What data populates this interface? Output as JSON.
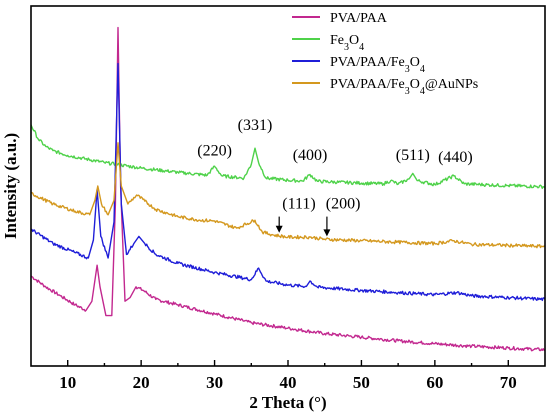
{
  "chart_data": {
    "type": "line",
    "title": "",
    "xlabel": "2 Theta (°)",
    "ylabel": "Intensity (a.u.)",
    "xlim": [
      5,
      75
    ],
    "ylim": [
      0,
      100
    ],
    "x_ticks": [
      10,
      20,
      30,
      40,
      50,
      60,
      70
    ],
    "y_ticks_visible": false,
    "grid": false,
    "legend_position": "top-right",
    "series": [
      {
        "name": "PVA/PAA",
        "label_parts": [
          {
            "t": "PVA/PAA",
            "sub": false
          }
        ],
        "color": "#c2288f",
        "points": [
          [
            5,
            25
          ],
          [
            7,
            22
          ],
          [
            9,
            19.5
          ],
          [
            11,
            17
          ],
          [
            12.5,
            15.5
          ],
          [
            13.3,
            18
          ],
          [
            14,
            28
          ],
          [
            14.4,
            22
          ],
          [
            15.2,
            14
          ],
          [
            16,
            14
          ],
          [
            16.5,
            45
          ],
          [
            16.85,
            94
          ],
          [
            17.2,
            50
          ],
          [
            17.8,
            18
          ],
          [
            18.5,
            19
          ],
          [
            19.3,
            22
          ],
          [
            20.3,
            21
          ],
          [
            22,
            18.5
          ],
          [
            25,
            17
          ],
          [
            30,
            14.5
          ],
          [
            35,
            12
          ],
          [
            40,
            10.5
          ],
          [
            45,
            9
          ],
          [
            50,
            8
          ],
          [
            55,
            7
          ],
          [
            60,
            6.2
          ],
          [
            65,
            5.5
          ],
          [
            70,
            5
          ],
          [
            75,
            4.5
          ]
        ]
      },
      {
        "name": "Fe3O4",
        "label_parts": [
          {
            "t": "Fe",
            "sub": false
          },
          {
            "t": "3",
            "sub": true
          },
          {
            "t": "O",
            "sub": false
          },
          {
            "t": "4",
            "sub": true
          }
        ],
        "color": "#4fd24a",
        "points": [
          [
            5,
            67
          ],
          [
            6,
            63
          ],
          [
            7,
            61
          ],
          [
            8,
            59.8
          ],
          [
            10,
            58.5
          ],
          [
            15,
            56.5
          ],
          [
            20,
            55
          ],
          [
            25,
            53.8
          ],
          [
            29,
            53
          ],
          [
            30,
            55.5
          ],
          [
            31,
            52.8
          ],
          [
            34,
            52.2
          ],
          [
            35,
            56
          ],
          [
            35.5,
            60.5
          ],
          [
            36,
            56.5
          ],
          [
            37,
            52.2
          ],
          [
            40,
            51.6
          ],
          [
            42,
            51.4
          ],
          [
            43,
            53.2
          ],
          [
            44,
            51.3
          ],
          [
            50,
            50.8
          ],
          [
            53,
            50.6
          ],
          [
            54,
            51.5
          ],
          [
            55,
            50.5
          ],
          [
            56.5,
            52
          ],
          [
            57,
            53.5
          ],
          [
            57.6,
            51.5
          ],
          [
            60,
            50.4
          ],
          [
            62.6,
            52.8
          ],
          [
            64,
            50.6
          ],
          [
            70,
            50.1
          ],
          [
            75,
            49.8
          ]
        ]
      },
      {
        "name": "PVA/PAA/Fe3O4",
        "label_parts": [
          {
            "t": "PVA/PAA/Fe",
            "sub": false
          },
          {
            "t": "3",
            "sub": true
          },
          {
            "t": "O",
            "sub": false
          },
          {
            "t": "4",
            "sub": true
          }
        ],
        "color": "#1f1ed8",
        "points": [
          [
            5,
            38
          ],
          [
            8,
            34
          ],
          [
            11,
            31.5
          ],
          [
            12.8,
            30
          ],
          [
            13.5,
            35
          ],
          [
            14,
            49
          ],
          [
            14.5,
            36
          ],
          [
            15.5,
            30
          ],
          [
            16.3,
            40
          ],
          [
            16.85,
            84
          ],
          [
            17.3,
            45
          ],
          [
            18,
            31
          ],
          [
            19,
            34
          ],
          [
            19.7,
            36
          ],
          [
            20.5,
            34
          ],
          [
            22,
            31
          ],
          [
            25,
            28.5
          ],
          [
            30,
            26
          ],
          [
            35,
            24
          ],
          [
            36,
            27.2
          ],
          [
            37,
            23.6
          ],
          [
            40,
            22.5
          ],
          [
            42.5,
            22.1
          ],
          [
            43,
            23.6
          ],
          [
            44,
            21.9
          ],
          [
            50,
            21
          ],
          [
            55,
            20.4
          ],
          [
            60,
            19.8
          ],
          [
            63,
            20.4
          ],
          [
            65,
            19.5
          ],
          [
            70,
            19
          ],
          [
            75,
            18.5
          ]
        ]
      },
      {
        "name": "PVA/PAA/Fe3O4@AuNPs",
        "label_parts": [
          {
            "t": "PVA/PAA/Fe",
            "sub": false
          },
          {
            "t": "3",
            "sub": true
          },
          {
            "t": "O",
            "sub": false
          },
          {
            "t": "4",
            "sub": true
          },
          {
            "t": "@AuNPs",
            "sub": false
          }
        ],
        "color": "#d4981e",
        "points": [
          [
            5,
            48
          ],
          [
            8,
            45
          ],
          [
            11,
            43
          ],
          [
            13,
            42
          ],
          [
            13.7,
            46
          ],
          [
            14.1,
            50
          ],
          [
            14.6,
            45
          ],
          [
            15.5,
            42
          ],
          [
            16.3,
            46
          ],
          [
            16.85,
            62
          ],
          [
            17.3,
            50
          ],
          [
            18.2,
            45
          ],
          [
            19.4,
            47.5
          ],
          [
            20.5,
            45.8
          ],
          [
            22,
            43.5
          ],
          [
            25,
            41.5
          ],
          [
            28,
            40.5
          ],
          [
            30,
            40.3
          ],
          [
            33,
            38.3
          ],
          [
            35.5,
            40.5
          ],
          [
            36.5,
            37.2
          ],
          [
            38,
            36.4
          ],
          [
            40,
            35.8
          ],
          [
            43,
            35.8
          ],
          [
            45,
            35.2
          ],
          [
            50,
            34.8
          ],
          [
            55,
            34.4
          ],
          [
            60,
            34
          ],
          [
            62.5,
            34.8
          ],
          [
            65,
            33.8
          ],
          [
            70,
            33.5
          ],
          [
            75,
            33.2
          ]
        ]
      }
    ],
    "annotations": [
      {
        "text": "(220)",
        "x": 30.0,
        "y": 58.5
      },
      {
        "text": "(331)",
        "x": 35.5,
        "y": 65.5
      },
      {
        "text": "(400)",
        "x": 43.0,
        "y": 57.2
      },
      {
        "text": "(511)",
        "x": 57.0,
        "y": 57.2
      },
      {
        "text": "(440)",
        "x": 62.8,
        "y": 56.7
      },
      {
        "text": "(111)",
        "x": 41.5,
        "y": 43.7
      },
      {
        "text": "(200)",
        "x": 47.5,
        "y": 43.7
      }
    ],
    "arrows": [
      {
        "x": 38.8,
        "y_from": 41.5,
        "y_to": 37.0
      },
      {
        "x": 45.3,
        "y_from": 41.5,
        "y_to": 36.0
      }
    ]
  }
}
